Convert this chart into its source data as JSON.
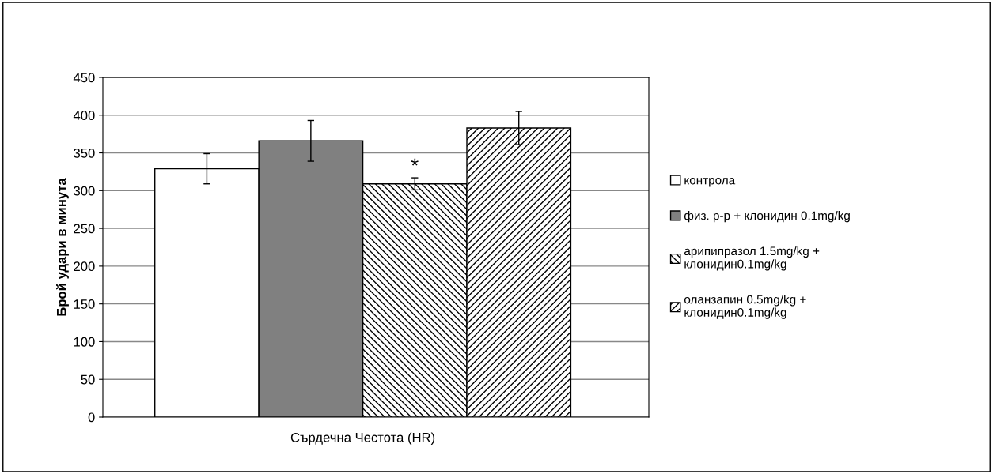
{
  "chart_data": {
    "type": "bar",
    "ylabel": "Брой удари в минута",
    "categories": [
      "Сърдечна Честота (HR)"
    ],
    "series": [
      {
        "name": "контрола",
        "color": "#ffffff",
        "values": [
          329
        ],
        "errors": [
          20
        ]
      },
      {
        "name": "физ. р-р + клонидин 0.1mg/kg",
        "color": "#808080",
        "values": [
          366
        ],
        "errors": [
          27
        ]
      },
      {
        "name": "арипипразол 1.5mg/kg +\nклонидин0.1mg/kg",
        "color": "#000000",
        "values": [
          309
        ],
        "errors": [
          8
        ]
      },
      {
        "name": "оланзапин 0.5mg/kg +\nклонидин0.1mg/kg",
        "color": "#000000",
        "values": [
          383
        ],
        "errors": [
          22
        ]
      }
    ],
    "annotations": [
      "*"
    ],
    "ylim": [
      0,
      450
    ],
    "yticks": [
      0,
      50,
      100,
      150,
      200,
      250,
      300,
      350,
      400,
      450
    ],
    "grid": "y",
    "legend": "right"
  }
}
